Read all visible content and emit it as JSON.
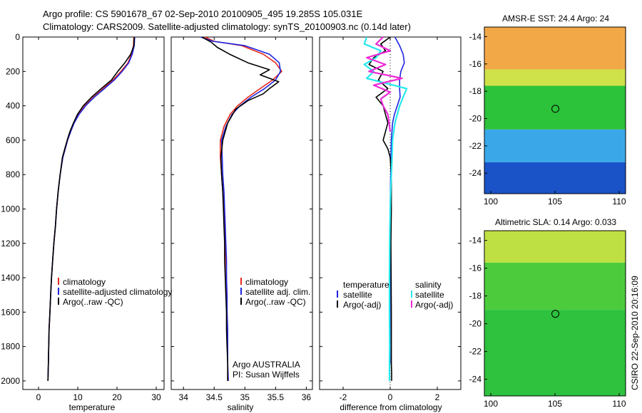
{
  "header": {
    "line1": "Argo profile: CS 5901678_67 02-Sep-2010 20100905_495 19.285S 105.031E",
    "line2": "Climatology: CARS2009. Satellite-adjusted climatology: synTS_20100903.nc (0.14d later)"
  },
  "side_label": "CSIRO 22-Sep-2010 20:16:09",
  "colors": {
    "climatology": "#e8281a",
    "satellite": "#1f25e0",
    "argo": "#000000",
    "satellite_diff_sal": "#26e8ee",
    "argo_diff_sal": "#ee2ad8"
  },
  "chart_data": [
    {
      "type": "line",
      "xlabel": "temperature",
      "xlim": [
        -4,
        32
      ],
      "xticks": [
        0,
        10,
        20,
        30
      ],
      "ylim": [
        0,
        2050
      ],
      "yticks": [
        0,
        200,
        400,
        600,
        800,
        1000,
        1200,
        1400,
        1600,
        1800,
        2000
      ],
      "y_reversed": true,
      "legend": [
        "climatology",
        "satellite-adjusted climatology",
        "Argo(..raw -QC)"
      ],
      "series": [
        {
          "name": "climatology",
          "color_key": "climatology",
          "x": [
            24.3,
            24.2,
            23.7,
            22.8,
            21.0,
            19.0,
            16.5,
            14.0,
            11.8,
            10.2,
            9.0,
            8.2,
            7.4,
            6.8,
            6.2,
            5.5,
            5.0,
            4.6,
            4.3,
            3.9,
            3.6,
            3.3,
            3.1,
            2.9,
            2.7,
            2.6,
            2.5,
            2.4
          ],
          "y": [
            0,
            50,
            100,
            150,
            200,
            250,
            300,
            350,
            400,
            450,
            500,
            550,
            600,
            650,
            700,
            800,
            900,
            1000,
            1100,
            1200,
            1300,
            1400,
            1500,
            1600,
            1700,
            1800,
            1900,
            2000
          ]
        },
        {
          "name": "satellite-adjusted climatology",
          "color_key": "satellite",
          "x": [
            24.5,
            24.4,
            23.9,
            23.0,
            21.3,
            19.3,
            16.8,
            14.2,
            12.0,
            10.3,
            9.1,
            8.2,
            7.4,
            6.8,
            6.2,
            5.5,
            5.0,
            4.6,
            4.3,
            3.9,
            3.6,
            3.3,
            3.1,
            2.9,
            2.7,
            2.6,
            2.5,
            2.4
          ],
          "y": [
            0,
            50,
            100,
            150,
            200,
            250,
            300,
            350,
            400,
            450,
            500,
            550,
            600,
            650,
            700,
            800,
            900,
            1000,
            1100,
            1200,
            1300,
            1400,
            1500,
            1600,
            1700,
            1800,
            1900,
            2000
          ]
        },
        {
          "name": "Argo(..raw -QC)",
          "color_key": "argo",
          "x": [
            24.4,
            24.3,
            23.5,
            22.0,
            20.2,
            18.6,
            16.0,
            13.5,
            11.4,
            9.9,
            8.9,
            8.0,
            7.3,
            6.7,
            6.1,
            5.5,
            5.0,
            4.6,
            4.3,
            3.9,
            3.6,
            3.3,
            3.1,
            2.9,
            2.7,
            2.6,
            2.5,
            2.4
          ],
          "y": [
            0,
            50,
            100,
            150,
            200,
            250,
            300,
            350,
            400,
            450,
            500,
            550,
            600,
            650,
            700,
            800,
            900,
            1000,
            1100,
            1200,
            1300,
            1400,
            1500,
            1600,
            1700,
            1800,
            1900,
            2000
          ]
        }
      ]
    },
    {
      "type": "line",
      "xlabel": "salinity",
      "xlim": [
        33.8,
        36.1
      ],
      "xticks": [
        34,
        34.5,
        35,
        35.5,
        36
      ],
      "ylim": [
        0,
        2050
      ],
      "yticks": [
        0,
        200,
        400,
        600,
        800,
        1000,
        1200,
        1400,
        1600,
        1800,
        2000
      ],
      "y_reversed": true,
      "legend": [
        "climatology",
        "satellite adj. clim.",
        "Argo(..raw -QC)"
      ],
      "annotation": [
        "Argo AUSTRALIA",
        "PI: Susan Wijffels"
      ],
      "series": [
        {
          "name": "climatology",
          "color_key": "climatology",
          "x": [
            34.35,
            34.5,
            34.95,
            35.3,
            35.5,
            35.6,
            35.45,
            35.25,
            35.05,
            34.88,
            34.76,
            34.66,
            34.6,
            34.6,
            34.62,
            34.64,
            34.66,
            34.67,
            34.68,
            34.69,
            34.7,
            34.7,
            34.71,
            34.71,
            34.72,
            34.72,
            34.72
          ],
          "y": [
            0,
            25,
            50,
            100,
            150,
            200,
            250,
            300,
            350,
            400,
            450,
            520,
            600,
            700,
            800,
            900,
            1000,
            1100,
            1200,
            1300,
            1400,
            1500,
            1600,
            1700,
            1800,
            1900,
            2000
          ]
        },
        {
          "name": "satellite adj. clim.",
          "color_key": "satellite",
          "x": [
            34.28,
            34.48,
            35.0,
            35.4,
            35.56,
            35.58,
            35.5,
            35.32,
            35.1,
            34.92,
            34.79,
            34.69,
            34.62,
            34.63,
            34.64,
            34.66,
            34.67,
            34.68,
            34.69,
            34.7,
            34.7,
            34.71,
            34.71,
            34.72,
            34.72,
            34.72,
            34.73
          ],
          "y": [
            0,
            25,
            50,
            100,
            150,
            200,
            250,
            300,
            350,
            400,
            450,
            520,
            600,
            700,
            800,
            900,
            1000,
            1100,
            1200,
            1300,
            1400,
            1500,
            1600,
            1700,
            1800,
            1900,
            2000
          ]
        },
        {
          "name": "Argo(..raw -QC)",
          "color_key": "argo",
          "x": [
            34.3,
            34.45,
            34.55,
            34.75,
            35.05,
            35.4,
            35.25,
            35.55,
            35.4,
            35.3,
            35.05,
            34.85,
            34.72,
            34.64,
            34.61,
            34.62,
            34.64,
            34.65,
            34.66,
            34.67,
            34.67,
            34.68,
            34.69,
            34.7,
            34.7,
            34.71,
            34.72,
            34.72
          ],
          "y": [
            0,
            30,
            60,
            100,
            150,
            190,
            220,
            260,
            300,
            330,
            370,
            420,
            500,
            600,
            700,
            800,
            900,
            1000,
            1100,
            1200,
            1300,
            1400,
            1500,
            1600,
            1700,
            1800,
            1900,
            2000
          ]
        }
      ]
    },
    {
      "type": "line",
      "xlabel": "difference from climatology",
      "xlim": [
        -3,
        3
      ],
      "xticks": [
        -2,
        0,
        2
      ],
      "ylim": [
        0,
        2050
      ],
      "yticks": [
        0,
        200,
        400,
        600,
        800,
        1000,
        1200,
        1400,
        1600,
        1800,
        2000
      ],
      "y_reversed": true,
      "legend_left": [
        "temperature",
        "satellite",
        "Argo(-adj)"
      ],
      "legend_right": [
        "salinity",
        "satellite",
        "Argo(-adj)"
      ],
      "series": [
        {
          "name": "satellite",
          "color_key": "satellite",
          "x": [
            0.2,
            0.4,
            0.55,
            0.6,
            0.45,
            0.4,
            0.4,
            0.42,
            0.3,
            0.18,
            0.1,
            0.05,
            0.03,
            0.02,
            0.01,
            0.0,
            0.0,
            0.0,
            0.0,
            0.0,
            0.0,
            0.0,
            0.0
          ],
          "y": [
            0,
            50,
            100,
            150,
            200,
            250,
            300,
            350,
            400,
            450,
            500,
            600,
            700,
            800,
            900,
            1000,
            1200,
            1400,
            1500,
            1600,
            1700,
            1800,
            1900
          ]
        },
        {
          "name": "Argo(-adj)",
          "color_key": "argo",
          "x": [
            0.0,
            -0.4,
            -0.2,
            -0.7,
            -0.9,
            -0.3,
            -0.5,
            -0.1,
            -0.6,
            -0.3,
            -0.2,
            -0.1,
            -0.2,
            -0.3,
            -0.1,
            0.0,
            0.05,
            0.05,
            0.03,
            0.04,
            0.05,
            0.05,
            0.05,
            0.06,
            0.06
          ],
          "y": [
            0,
            40,
            80,
            120,
            160,
            200,
            250,
            300,
            350,
            400,
            450,
            500,
            550,
            600,
            650,
            700,
            800,
            1000,
            1200,
            1400,
            1600,
            1800,
            1900,
            1950,
            2000
          ]
        },
        {
          "name": "satellite",
          "color_key": "satellite_diff_sal",
          "x": [
            -1.0,
            -1.1,
            -0.4,
            -0.6,
            -1.1,
            -0.7,
            -1.0,
            0.7,
            0.4,
            0.3,
            0.2,
            0.15,
            0.1,
            0.08,
            0.05,
            0.02,
            0.0,
            -0.02,
            -0.03,
            -0.03,
            -0.02,
            -0.03,
            -0.03
          ],
          "y": [
            0,
            40,
            80,
            120,
            160,
            200,
            240,
            300,
            400,
            450,
            500,
            550,
            600,
            700,
            800,
            900,
            1000,
            1200,
            1400,
            1600,
            1800,
            1900,
            2000
          ]
        },
        {
          "name": "Argo(-adj)",
          "color_key": "argo_diff_sal",
          "x": [
            -0.3,
            -0.6,
            0.0,
            -1.0,
            -0.2,
            -0.9,
            0.5,
            -0.7,
            0.0,
            -0.4,
            -0.3,
            -0.1,
            -0.05,
            0.0
          ],
          "y": [
            0,
            40,
            80,
            120,
            160,
            200,
            240,
            280,
            320,
            360,
            400,
            450,
            500,
            550
          ]
        }
      ]
    },
    {
      "type": "heatmap",
      "title": "AMSR-E SST: 24.4 Argo: 24",
      "xlim": [
        99.5,
        110.5
      ],
      "xticks": [
        100,
        105,
        110
      ],
      "ylim": [
        -25.5,
        -13.3
      ],
      "yticks": [
        -14,
        -16,
        -18,
        -20,
        -22,
        -24
      ],
      "marker": {
        "lon": 105.031,
        "lat": -19.285
      },
      "bands": [
        {
          "lat_from": -13.3,
          "lat_to": -16.4,
          "color": "#f3a848"
        },
        {
          "lat_from": -16.4,
          "lat_to": -17.6,
          "color": "#cfe24a"
        },
        {
          "lat_from": -17.6,
          "lat_to": -20.8,
          "color": "#2cc23a"
        },
        {
          "lat_from": -20.8,
          "lat_to": -23.2,
          "color": "#3aa8e8"
        },
        {
          "lat_from": -23.2,
          "lat_to": -25.5,
          "color": "#1a52c8"
        }
      ]
    },
    {
      "type": "heatmap",
      "title": "Altimetric SLA: 0.14 Argo: 0.033",
      "xlim": [
        99.5,
        110.5
      ],
      "xticks": [
        100,
        105,
        110
      ],
      "ylim": [
        -25.2,
        -13.3
      ],
      "yticks": [
        -14,
        -16,
        -18,
        -20,
        -22,
        -24
      ],
      "marker": {
        "lon": 105.031,
        "lat": -19.285
      },
      "bands": [
        {
          "lat_from": -13.3,
          "lat_to": -15.6,
          "color": "#bfe042"
        },
        {
          "lat_from": -15.6,
          "lat_to": -19.0,
          "color": "#4ccc3c"
        },
        {
          "lat_from": -19.0,
          "lat_to": -25.2,
          "color": "#2ec23e"
        }
      ]
    }
  ]
}
